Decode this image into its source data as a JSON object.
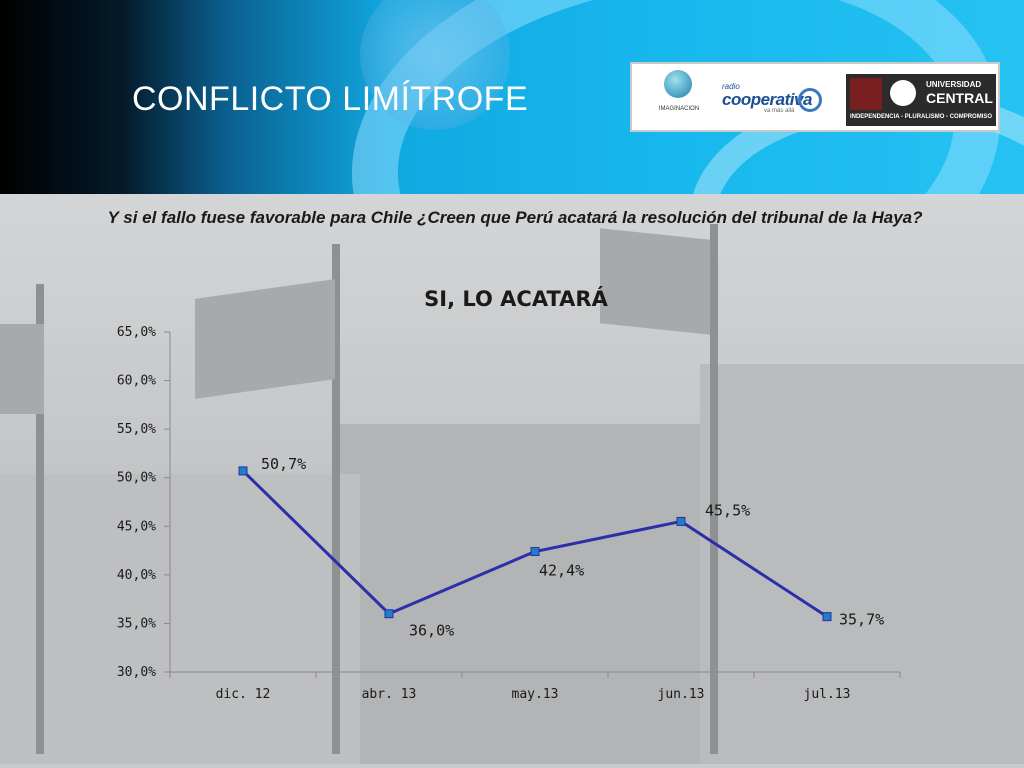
{
  "header": {
    "title": "CONFLICTO LIMÍTROFE",
    "logos": {
      "imaginacion": "IMAGINACION",
      "cooperativa_small": "radio",
      "cooperativa": "cooperativa",
      "cooperativa_tag": "va más allá",
      "universidad_line1": "UNIVERSIDAD",
      "universidad_line2": "CENTRAL",
      "universidad_motto": "INDEPENDENCIA - PLURALISMO - COMPROMISO"
    }
  },
  "question": "Y si el fallo fuese favorable para Chile ¿Creen que Perú acatará la resolución del tribunal de la Haya?",
  "chart_data": {
    "type": "line",
    "title": "SI, LO ACATARÁ",
    "categories": [
      "dic. 12",
      "abr. 13",
      "may.13",
      "jun.13",
      "jul.13"
    ],
    "series": [
      {
        "values": [
          50.7,
          36.0,
          42.4,
          45.5,
          35.7
        ],
        "labels": [
          "50,7%",
          "36,0%",
          "42,4%",
          "45,5%",
          "35,7%"
        ],
        "color": "#2b2fa8"
      }
    ],
    "ylim": [
      30,
      65
    ],
    "yticks": [
      "30,0%",
      "35,0%",
      "40,0%",
      "45,0%",
      "50,0%",
      "55,0%",
      "60,0%",
      "65,0%"
    ],
    "grid": false,
    "legend": "none"
  }
}
